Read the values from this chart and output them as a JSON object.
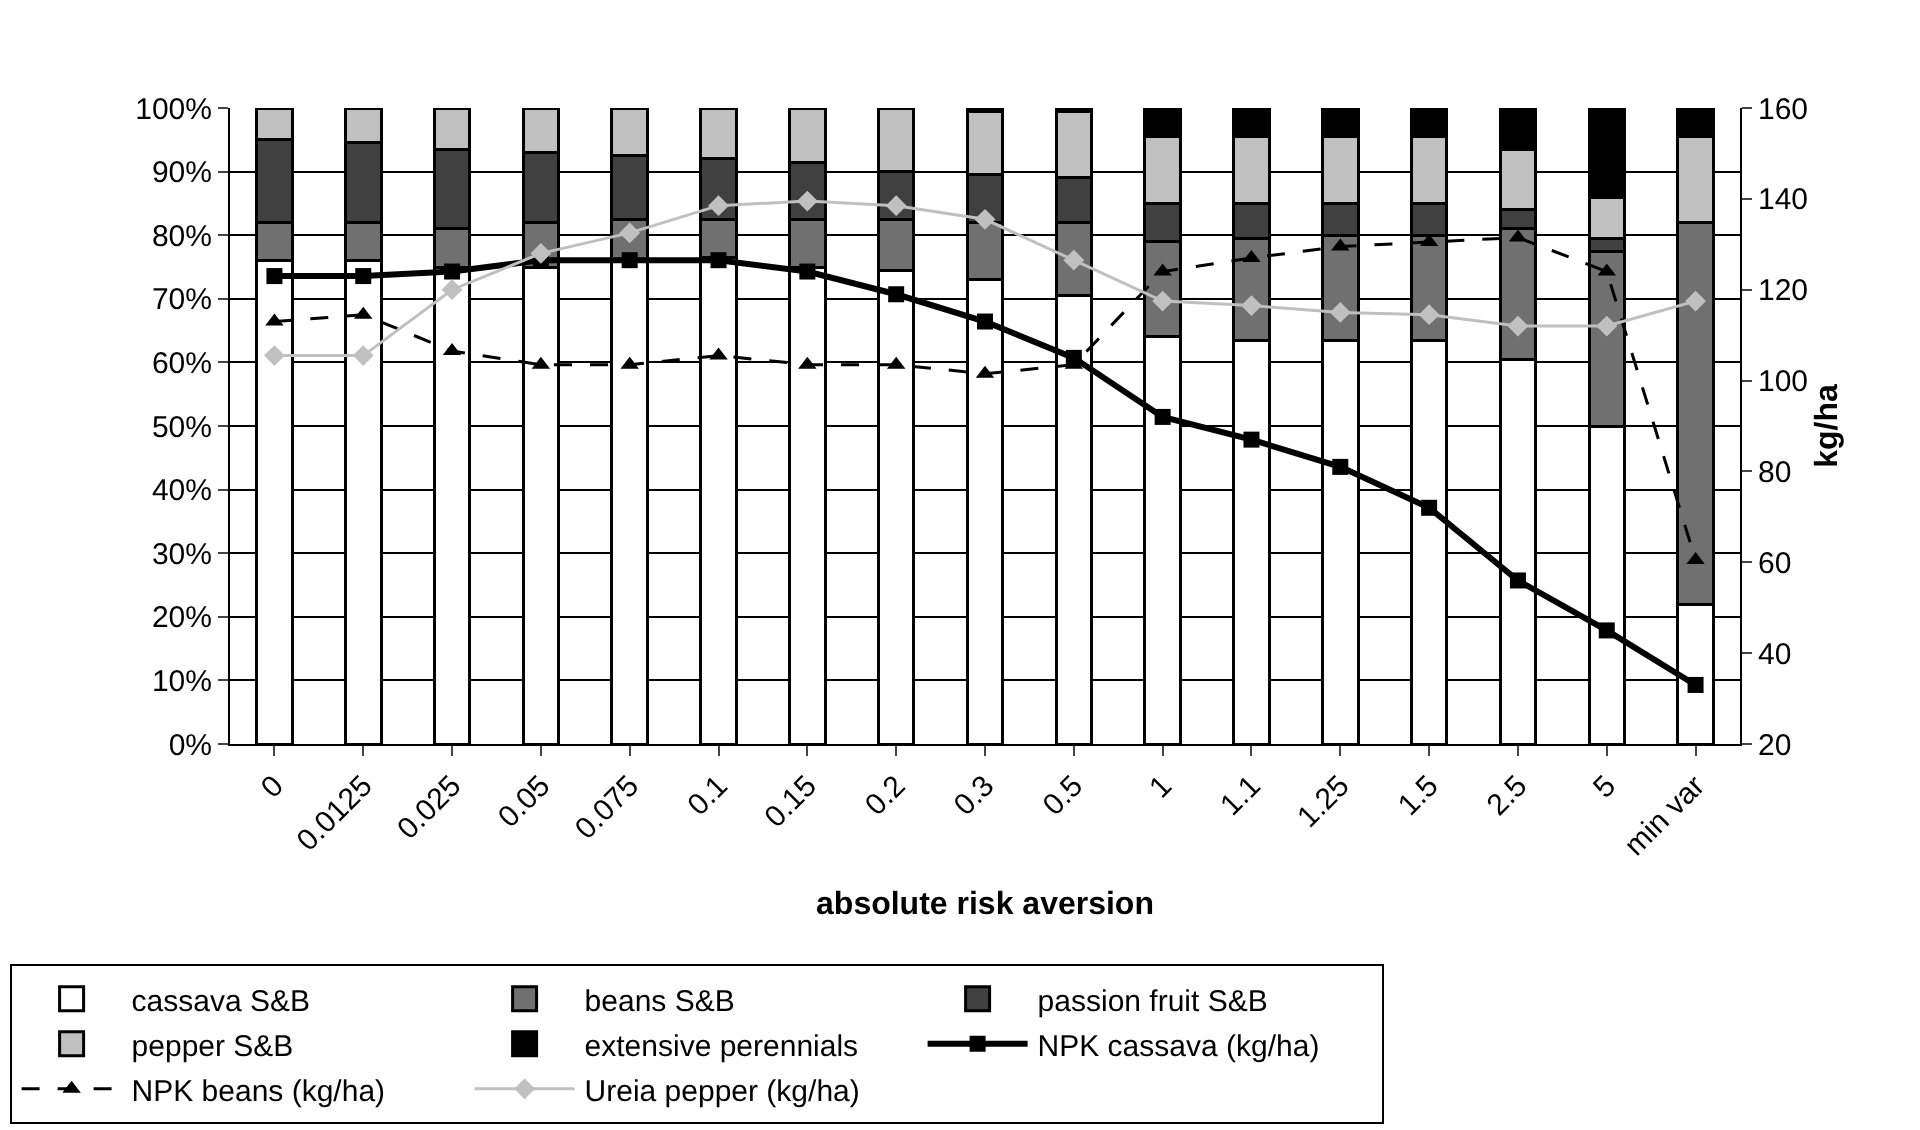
{
  "chart_data": {
    "type": "bar",
    "stacked": true,
    "xlabel": "absolute risk aversion",
    "y2label": "kg/ha",
    "categories": [
      "0",
      "0.0125",
      "0.025",
      "0.05",
      "0.075",
      "0.1",
      "0.15",
      "0.2",
      "0.3",
      "0.5",
      "1",
      "1.1",
      "1.25",
      "1.5",
      "2.5",
      "5",
      "min var"
    ],
    "series": [
      {
        "name": "cassava S&B",
        "color": "#ffffff",
        "values": [
          76,
          76,
          75,
          75,
          76,
          76.5,
          75,
          74.5,
          73,
          70.5,
          64,
          63.5,
          63.5,
          63.5,
          60.5,
          50,
          22
        ]
      },
      {
        "name": "beans S&B",
        "color": "#707070",
        "values": [
          6,
          6,
          6,
          7,
          6.5,
          6,
          7.5,
          8,
          9,
          11.5,
          15,
          16,
          16.5,
          16.5,
          20.5,
          27.5,
          60
        ]
      },
      {
        "name": "passion fruit S&B",
        "color": "#404040",
        "values": [
          13,
          12.5,
          12.5,
          11,
          10,
          9.5,
          9,
          7.5,
          7.5,
          7,
          6,
          5.5,
          5,
          5,
          3,
          2,
          0
        ]
      },
      {
        "name": "pepper S&B",
        "color": "#c0c0c0",
        "values": [
          5,
          5.5,
          6.5,
          7,
          7.5,
          8,
          8.5,
          10,
          10,
          10.5,
          10.5,
          10.5,
          10.5,
          10.5,
          9.5,
          6.5,
          13.5
        ]
      },
      {
        "name": "extensive perennials",
        "color": "#000000",
        "values": [
          0,
          0,
          0,
          0,
          0,
          0,
          0,
          0,
          0.5,
          0.5,
          4.5,
          4.5,
          4.5,
          4.5,
          6.5,
          14,
          4.5
        ]
      },
      {
        "name": "NPK cassava (kg/ha)",
        "type": "line",
        "axis": "y2",
        "color": "#000000",
        "marker": "square",
        "line_style": "solid",
        "values": [
          123,
          123,
          124,
          126.5,
          126.5,
          126.5,
          124,
          119,
          113,
          105,
          92,
          87,
          81,
          72,
          56,
          45,
          33
        ]
      },
      {
        "name": "NPK beans (kg/ha)",
        "type": "line",
        "axis": "y2",
        "color": "#000000",
        "marker": "triangle",
        "line_style": "dashed",
        "values": [
          113,
          114.5,
          106.5,
          103.5,
          103.5,
          105.5,
          103.5,
          103.5,
          101.5,
          103.5,
          124,
          127,
          129.5,
          130.5,
          131.5,
          124,
          60.5
        ]
      },
      {
        "name": "Ureia pepper (kg/ha)",
        "type": "line",
        "axis": "y2",
        "color": "#c0c0c0",
        "marker": "diamond",
        "line_style": "solid",
        "values": [
          105.5,
          105.5,
          120,
          128,
          132.5,
          138.5,
          139.5,
          138.5,
          135.5,
          126.5,
          117.5,
          116.5,
          115,
          114.5,
          112,
          112,
          117.5
        ]
      }
    ],
    "ylim": [
      0,
      100
    ],
    "yticks": [
      {
        "value": 0,
        "label": "0%"
      },
      {
        "value": 10,
        "label": "10%"
      },
      {
        "value": 20,
        "label": "20%"
      },
      {
        "value": 30,
        "label": "30%"
      },
      {
        "value": 40,
        "label": "40%"
      },
      {
        "value": 50,
        "label": "50%"
      },
      {
        "value": 60,
        "label": "60%"
      },
      {
        "value": 70,
        "label": "70%"
      },
      {
        "value": 80,
        "label": "80%"
      },
      {
        "value": 90,
        "label": "90%"
      },
      {
        "value": 100,
        "label": "100%"
      }
    ],
    "y2lim": [
      20,
      160
    ],
    "y2ticks": [
      20,
      40,
      60,
      80,
      100,
      120,
      140,
      160
    ],
    "grid": "y",
    "legend": "bottom"
  }
}
